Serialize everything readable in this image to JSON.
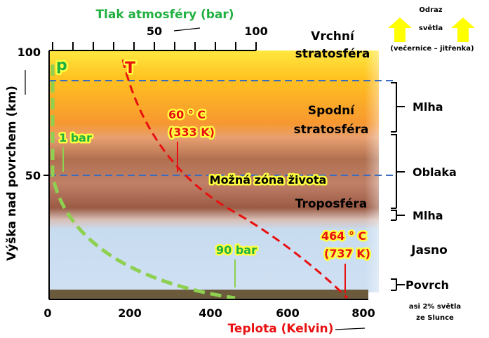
{
  "pressure_axis": {
    "title": "Tlak atmosféry (bar)",
    "ticks": [
      "50",
      "100"
    ]
  },
  "temperature_axis": {
    "title": "Teplota (Kelvin)",
    "ticks": [
      "0",
      "200",
      "400",
      "600",
      "800"
    ]
  },
  "altitude_axis": {
    "title": "Výška nad povrchem (km)",
    "ticks": [
      "100",
      "50"
    ]
  },
  "curves": {
    "pressure": "p",
    "temperature": "T"
  },
  "annotations": {
    "one_bar": "1 bar",
    "ninety_bar": "90 bar",
    "temp_60": [
      "60  ° C",
      "(333 K)"
    ],
    "temp_464": [
      "464  ° C",
      "(737 K)"
    ],
    "life_zone": "Možná zóna života"
  },
  "layers": {
    "upper_stratosphere": [
      "Vrchní",
      "stratosféra"
    ],
    "lower_stratosphere": [
      "Spodní",
      "stratosféra"
    ],
    "troposphere": "Troposféra",
    "clear": "Jasno"
  },
  "side_labels": {
    "haze_top": "Mlha",
    "clouds": "Oblaka",
    "haze_bottom": "Mlha",
    "surface": "Povrch"
  },
  "reflection": [
    "Odraz",
    "světla",
    "(večernice – jitřenka)"
  ],
  "sunlight": [
    "asi 2% světla",
    "ze Slunce"
  ]
}
